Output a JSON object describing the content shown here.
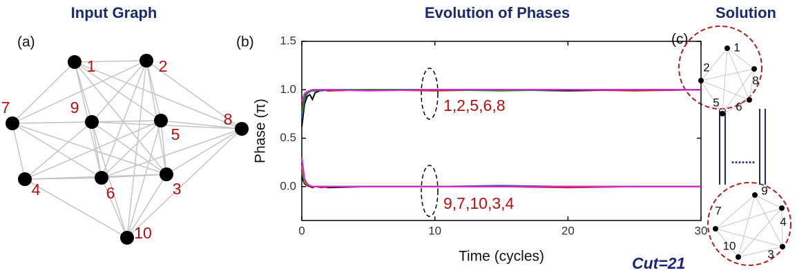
{
  "input_graph": {
    "title": "Input Graph",
    "panel_label": "(a)",
    "nodes": [
      {
        "label": "1"
      },
      {
        "label": "2"
      },
      {
        "label": "7"
      },
      {
        "label": "9"
      },
      {
        "label": "5"
      },
      {
        "label": "8"
      },
      {
        "label": "4"
      },
      {
        "label": "6"
      },
      {
        "label": "3"
      },
      {
        "label": "10"
      }
    ]
  },
  "chart_data": {
    "type": "line",
    "title": "Evolution of Phases",
    "panel_label": "(b)",
    "x_label": "Time (cycles)",
    "y_label": "Phase (π)",
    "xlim": [
      0,
      30
    ],
    "ylim": [
      -0.35,
      1.5
    ],
    "xticks": [
      0,
      10,
      20,
      30
    ],
    "yticks": [
      {
        "value": 0,
        "label": "0.0"
      },
      0.5,
      {
        "value": 1,
        "label": "1.0"
      },
      {
        "value": 1.5,
        "label": "1.5"
      }
    ],
    "annotations": [
      "1,2,5,6,8",
      "9,7,10,3,4"
    ],
    "x": [
      0,
      0.2,
      0.4,
      0.6,
      0.8,
      1,
      1.5,
      2,
      5,
      10,
      15,
      20,
      25,
      30
    ],
    "series": [
      {
        "color": "#000000",
        "values": [
          0.62,
          0.85,
          0.93,
          0.95,
          0.9,
          0.97,
          1.0,
          0.99,
          1.0,
          1.0,
          1.0,
          0.99,
          1.0,
          1.0
        ]
      },
      {
        "color": "#1f3fbf",
        "values": [
          0.7,
          0.9,
          0.96,
          0.98,
          0.99,
          1.0,
          0.99,
          1.0,
          1.0,
          1.0,
          1.0,
          1.0,
          1.0,
          1.0
        ]
      },
      {
        "color": "#d01010",
        "values": [
          0.8,
          0.94,
          0.97,
          0.99,
          1.0,
          1.0,
          1.0,
          0.99,
          1.0,
          0.99,
          1.0,
          1.0,
          0.99,
          1.0
        ]
      },
      {
        "color": "#1a8a1a",
        "values": [
          0.75,
          0.92,
          0.97,
          0.98,
          0.99,
          0.99,
          1.0,
          1.0,
          1.0,
          1.0,
          0.99,
          1.0,
          1.0,
          1.0
        ]
      },
      {
        "color": "#e020e0",
        "values": [
          0.88,
          0.96,
          0.98,
          0.99,
          1.0,
          1.0,
          1.0,
          1.0,
          0.99,
          1.0,
          1.0,
          1.0,
          1.0,
          1.0
        ]
      },
      {
        "color": "#000000",
        "values": [
          0.1,
          0.03,
          0.01,
          0.0,
          -0.01,
          0.0,
          0.0,
          -0.01,
          0.0,
          0.0,
          0.0,
          0.0,
          0.0,
          0.0
        ]
      },
      {
        "color": "#1f3fbf",
        "values": [
          0.15,
          0.05,
          0.02,
          0.01,
          0.0,
          0.0,
          0.0,
          0.0,
          0.0,
          0.0,
          0.01,
          0.0,
          0.0,
          0.0
        ]
      },
      {
        "color": "#d01010",
        "values": [
          0.2,
          0.06,
          0.02,
          0.0,
          0.0,
          0.0,
          -0.01,
          0.0,
          0.0,
          0.0,
          0.0,
          -0.01,
          0.0,
          0.0
        ]
      },
      {
        "color": "#8a8a10",
        "values": [
          0.22,
          0.04,
          0.02,
          0.01,
          0.0,
          0.0,
          0.0,
          0.0,
          0.0,
          0.0,
          0.0,
          0.0,
          0.0,
          0.0
        ]
      },
      {
        "color": "#e020e0",
        "values": [
          0.3,
          0.08,
          0.03,
          0.01,
          0.0,
          0.0,
          0.0,
          0.0,
          0.0,
          0.0,
          0.0,
          0.0,
          0.0,
          0.0
        ]
      }
    ]
  },
  "solution": {
    "title": "Solution",
    "panel_label": "(c)",
    "top_nodes": [
      {
        "label": "1"
      },
      {
        "label": "2"
      },
      {
        "label": "8"
      },
      {
        "label": "5"
      },
      {
        "label": "6"
      }
    ],
    "bottom_nodes": [
      {
        "label": "9"
      },
      {
        "label": "7"
      },
      {
        "label": "4"
      },
      {
        "label": "10"
      },
      {
        "label": "3"
      }
    ],
    "dots": ".......",
    "cut": "Cut=21"
  }
}
